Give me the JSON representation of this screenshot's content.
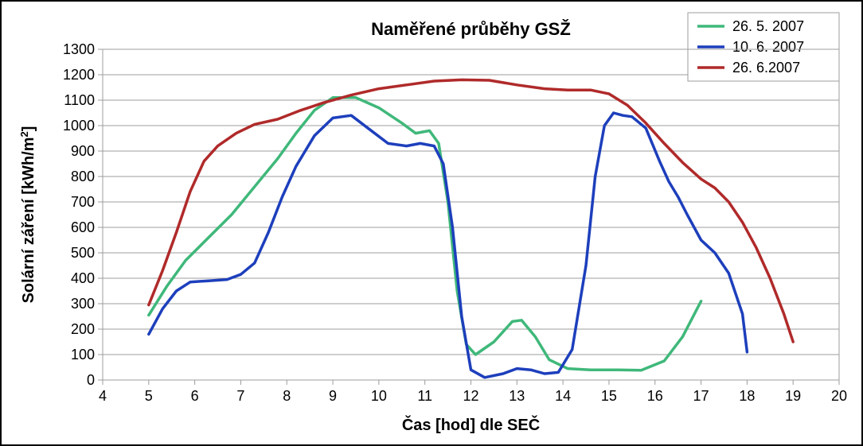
{
  "chart": {
    "type": "line",
    "title": "Naměřené průběhy GSŽ",
    "title_fontsize": 22,
    "title_fontweight": 700,
    "xlabel": "Čas [hod] dle SEČ",
    "ylabel": "Solární záření [kWh/m²]",
    "label_fontsize": 20,
    "label_fontweight": 700,
    "tick_fontsize": 18,
    "background_color": "#ffffff",
    "outer_border_color": "#000000",
    "plot_border_color": "#9c9c9c",
    "xlim": [
      4,
      20
    ],
    "ylim": [
      0,
      1300
    ],
    "xtick_step": 1,
    "ytick_step": 100,
    "grid": {
      "enabled": true,
      "horizontal": true,
      "vertical": false,
      "color": "#9c9c9c",
      "width": 1
    },
    "tick_color": "#9c9c9c",
    "line_width": 3.5,
    "series": [
      {
        "name": "26. 5. 2007",
        "color": "#3fb87a",
        "points": [
          [
            5.0,
            255
          ],
          [
            5.4,
            370
          ],
          [
            5.8,
            470
          ],
          [
            6.3,
            560
          ],
          [
            6.8,
            650
          ],
          [
            7.3,
            760
          ],
          [
            7.8,
            870
          ],
          [
            8.2,
            970
          ],
          [
            8.6,
            1060
          ],
          [
            9.0,
            1110
          ],
          [
            9.5,
            1110
          ],
          [
            10.0,
            1070
          ],
          [
            10.5,
            1010
          ],
          [
            10.8,
            970
          ],
          [
            11.1,
            980
          ],
          [
            11.3,
            930
          ],
          [
            11.5,
            700
          ],
          [
            11.7,
            350
          ],
          [
            11.9,
            140
          ],
          [
            12.1,
            100
          ],
          [
            12.5,
            150
          ],
          [
            12.9,
            230
          ],
          [
            13.1,
            235
          ],
          [
            13.4,
            170
          ],
          [
            13.7,
            80
          ],
          [
            14.1,
            45
          ],
          [
            14.6,
            40
          ],
          [
            15.2,
            40
          ],
          [
            15.7,
            38
          ],
          [
            16.2,
            75
          ],
          [
            16.6,
            170
          ],
          [
            17.0,
            310
          ]
        ]
      },
      {
        "name": "10. 6. 2007",
        "color": "#1d3fbc",
        "points": [
          [
            5.0,
            180
          ],
          [
            5.3,
            280
          ],
          [
            5.6,
            350
          ],
          [
            5.9,
            385
          ],
          [
            6.3,
            390
          ],
          [
            6.7,
            395
          ],
          [
            7.0,
            415
          ],
          [
            7.3,
            460
          ],
          [
            7.6,
            580
          ],
          [
            7.9,
            720
          ],
          [
            8.2,
            840
          ],
          [
            8.6,
            960
          ],
          [
            9.0,
            1030
          ],
          [
            9.4,
            1040
          ],
          [
            9.8,
            985
          ],
          [
            10.2,
            930
          ],
          [
            10.6,
            920
          ],
          [
            10.9,
            930
          ],
          [
            11.2,
            920
          ],
          [
            11.4,
            850
          ],
          [
            11.6,
            600
          ],
          [
            11.8,
            250
          ],
          [
            12.0,
            40
          ],
          [
            12.3,
            10
          ],
          [
            12.7,
            25
          ],
          [
            13.0,
            45
          ],
          [
            13.3,
            40
          ],
          [
            13.6,
            25
          ],
          [
            13.9,
            30
          ],
          [
            14.2,
            120
          ],
          [
            14.5,
            450
          ],
          [
            14.7,
            800
          ],
          [
            14.9,
            1000
          ],
          [
            15.1,
            1050
          ],
          [
            15.3,
            1040
          ],
          [
            15.5,
            1035
          ],
          [
            15.8,
            990
          ],
          [
            16.1,
            860
          ],
          [
            16.3,
            780
          ],
          [
            16.5,
            720
          ],
          [
            16.7,
            650
          ],
          [
            17.0,
            550
          ],
          [
            17.3,
            500
          ],
          [
            17.6,
            420
          ],
          [
            17.9,
            260
          ],
          [
            18.0,
            110
          ]
        ]
      },
      {
        "name": "26. 6.2007",
        "color": "#b02a2a",
        "points": [
          [
            5.0,
            295
          ],
          [
            5.3,
            430
          ],
          [
            5.6,
            580
          ],
          [
            5.9,
            740
          ],
          [
            6.2,
            860
          ],
          [
            6.5,
            920
          ],
          [
            6.9,
            970
          ],
          [
            7.3,
            1005
          ],
          [
            7.8,
            1025
          ],
          [
            8.3,
            1060
          ],
          [
            8.8,
            1090
          ],
          [
            9.4,
            1120
          ],
          [
            10.0,
            1145
          ],
          [
            10.6,
            1160
          ],
          [
            11.2,
            1175
          ],
          [
            11.8,
            1180
          ],
          [
            12.4,
            1178
          ],
          [
            13.0,
            1160
          ],
          [
            13.6,
            1145
          ],
          [
            14.1,
            1140
          ],
          [
            14.6,
            1140
          ],
          [
            15.0,
            1125
          ],
          [
            15.4,
            1080
          ],
          [
            15.8,
            1010
          ],
          [
            16.2,
            930
          ],
          [
            16.6,
            855
          ],
          [
            17.0,
            790
          ],
          [
            17.3,
            755
          ],
          [
            17.6,
            700
          ],
          [
            17.9,
            620
          ],
          [
            18.2,
            520
          ],
          [
            18.5,
            400
          ],
          [
            18.8,
            260
          ],
          [
            19.0,
            150
          ]
        ]
      }
    ],
    "legend": {
      "position": "top-right",
      "border_color": "#9c9c9c",
      "background_color": "#ffffff",
      "fontsize": 18,
      "line_length": 34
    }
  }
}
